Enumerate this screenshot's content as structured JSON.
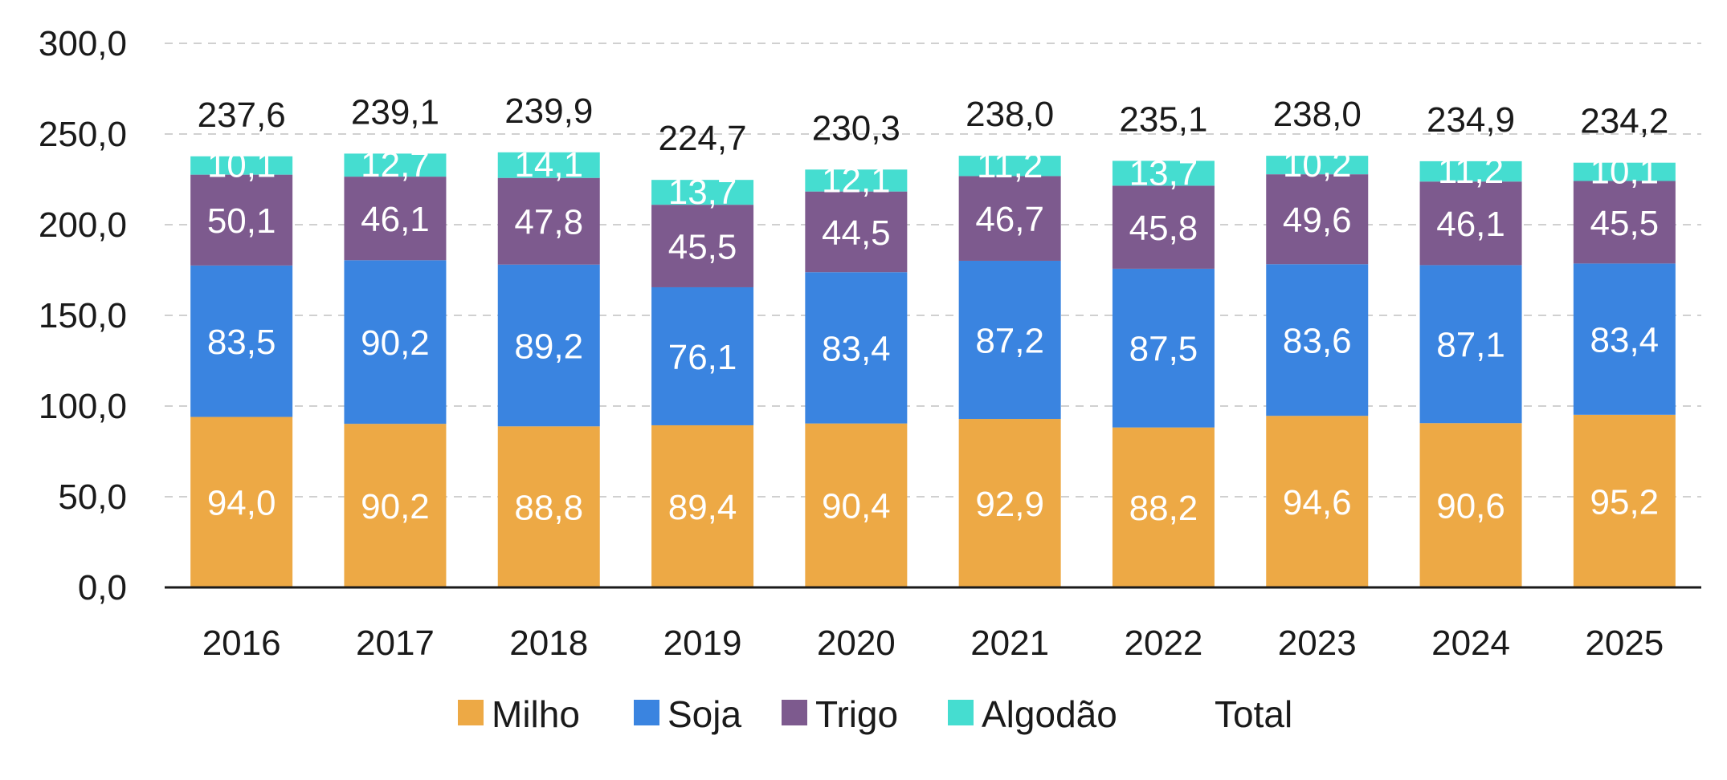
{
  "chart_data": {
    "type": "bar",
    "stacked": true,
    "categories": [
      "2016",
      "2017",
      "2018",
      "2019",
      "2020",
      "2021",
      "2022",
      "2023",
      "2024",
      "2025"
    ],
    "series": [
      {
        "name": "Milho",
        "color": "#EDA945",
        "values": [
          94.0,
          90.2,
          88.8,
          89.4,
          90.4,
          92.9,
          88.2,
          94.6,
          90.6,
          95.2
        ],
        "labels": [
          "94,0",
          "90,2",
          "88,8",
          "89,4",
          "90,4",
          "92,9",
          "88,2",
          "94,6",
          "90,6",
          "95,2"
        ]
      },
      {
        "name": "Soja",
        "color": "#3A84E0",
        "values": [
          83.5,
          90.2,
          89.2,
          76.1,
          83.4,
          87.2,
          87.5,
          83.6,
          87.1,
          83.4
        ],
        "labels": [
          "83,5",
          "90,2",
          "89,2",
          "76,1",
          "83,4",
          "87,2",
          "87,5",
          "83,6",
          "87,1",
          "83,4"
        ]
      },
      {
        "name": "Trigo",
        "color": "#7D5A8E",
        "values": [
          50.1,
          46.1,
          47.8,
          45.5,
          44.5,
          46.7,
          45.8,
          49.6,
          46.1,
          45.5
        ],
        "labels": [
          "50,1",
          "46,1",
          "47,8",
          "45,5",
          "44,5",
          "46,7",
          "45,8",
          "49,6",
          "46,1",
          "45,5"
        ]
      },
      {
        "name": "Algodão",
        "color": "#45DDD0",
        "values": [
          10.1,
          12.7,
          14.1,
          13.7,
          12.1,
          11.2,
          13.7,
          10.2,
          11.2,
          10.1
        ],
        "labels": [
          "10,1",
          "12,7",
          "14,1",
          "13,7",
          "12,1",
          "11,2",
          "13,7",
          "10,2",
          "11,2",
          "10,1"
        ]
      }
    ],
    "totals": {
      "name": "Total",
      "values": [
        237.6,
        239.1,
        239.9,
        224.7,
        230.3,
        238.0,
        235.1,
        238.0,
        234.9,
        234.2
      ],
      "labels": [
        "237,6",
        "239,1",
        "239,9",
        "224,7",
        "230,3",
        "238,0",
        "235,1",
        "238,0",
        "234,9",
        "234,2"
      ]
    },
    "ylim": [
      0,
      300
    ],
    "yticks": [
      0,
      50,
      100,
      150,
      200,
      250,
      300
    ],
    "ytick_labels": [
      "0,0",
      "50,0",
      "100,0",
      "150,0",
      "200,0",
      "250,0",
      "300,0"
    ],
    "grid": true,
    "legend_position": "bottom",
    "title": "",
    "xlabel": "",
    "ylabel": ""
  }
}
